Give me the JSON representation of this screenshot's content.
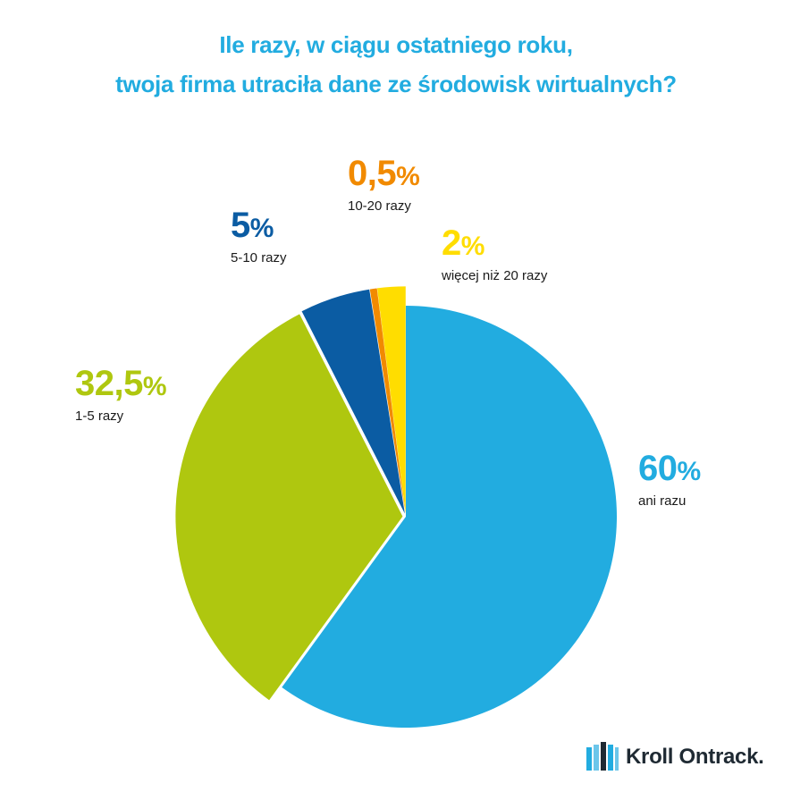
{
  "title": {
    "line1": "Ile razy, w ciągu ostatniego roku,",
    "line2": "twoja firma utraciła dane ze środowisk wirtualnych?"
  },
  "chart_data": {
    "type": "pie",
    "start_angle_deg": 0,
    "direction": "clockwise",
    "slices": [
      {
        "label": "ani razu",
        "value": 60,
        "value_label": "60",
        "color": "#22ACE0",
        "exploded": false
      },
      {
        "label": "1-5 razy",
        "value": 32.5,
        "value_label": "32,5",
        "color": "#AFC70F",
        "exploded": true
      },
      {
        "label": "5-10 razy",
        "value": 5,
        "value_label": "5",
        "color": "#0B5CA3",
        "exploded": true
      },
      {
        "label": "10-20 razy",
        "value": 0.5,
        "value_label": "0,5",
        "color": "#F18A00",
        "exploded": true
      },
      {
        "label": "więcej niż 20 razy",
        "value": 2,
        "value_label": "2",
        "color": "#FFDD00",
        "exploded": true
      }
    ],
    "percent_sign": "%"
  },
  "logo": {
    "text": "Kroll Ontrack.",
    "icon": "book-logo-icon",
    "color": "#1f2a33",
    "accent": "#22ACE0"
  }
}
